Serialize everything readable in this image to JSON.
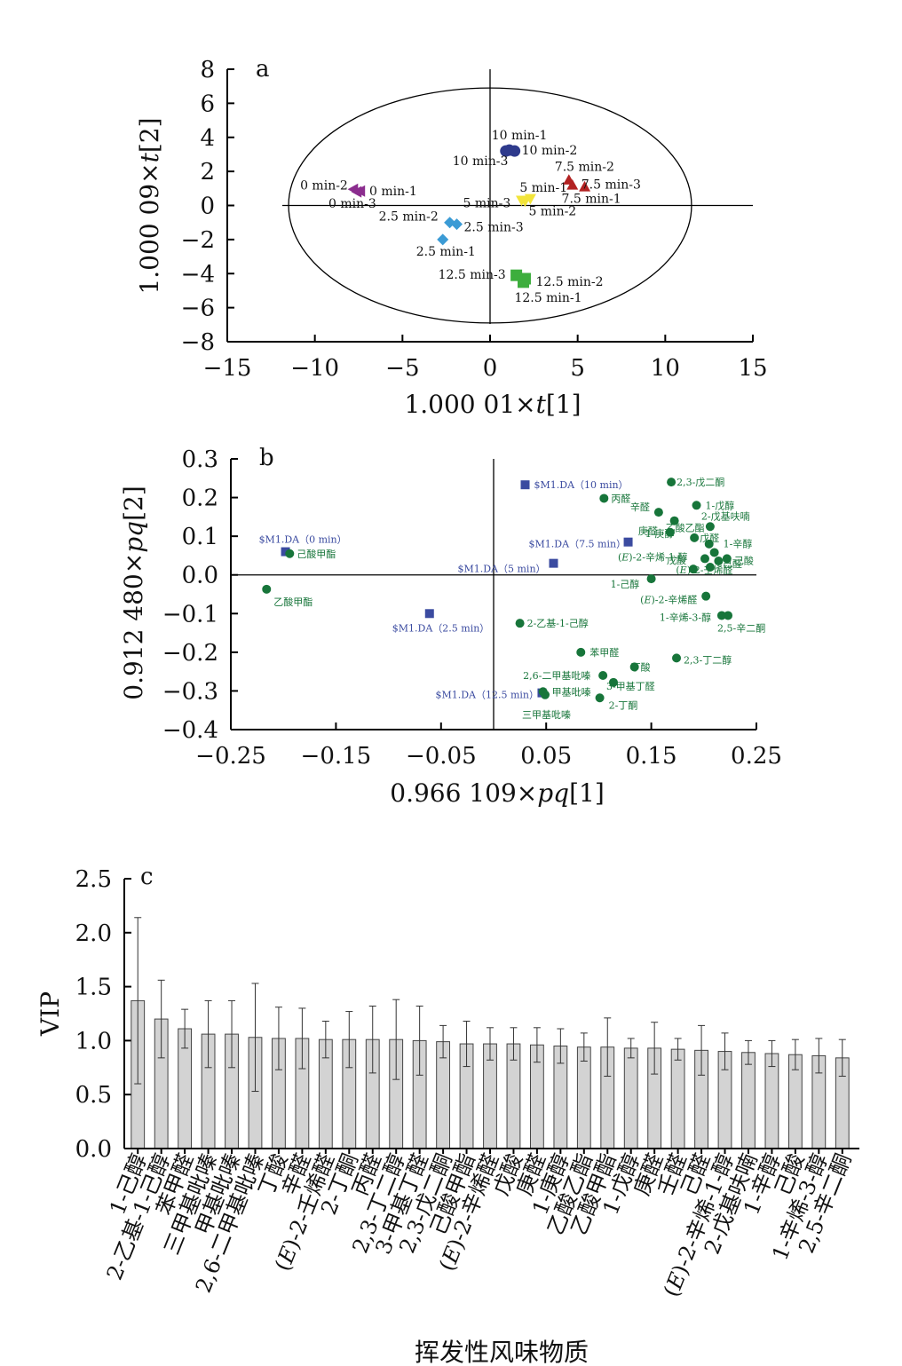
{
  "chart_data": [
    {
      "panel": "a",
      "type": "scatter",
      "xlabel_prefix": "1.000 01×",
      "xlabel_var": "t",
      "xlabel_suffix": "[1]",
      "ylabel_prefix": "1.000 09×",
      "ylabel_var": "t",
      "ylabel_suffix": "[2]",
      "xlim": [
        -15,
        15
      ],
      "ylim": [
        -8,
        8
      ],
      "x_ticks": [
        "−15",
        "−10",
        "−5",
        "0",
        "5",
        "10",
        "15"
      ],
      "y_ticks": [
        "8",
        "6",
        "4",
        "2",
        "0",
        "−2",
        "−4",
        "−6",
        "−8"
      ],
      "ellipse": {
        "cx": 0,
        "cy": 0,
        "rx": 11.5,
        "ry": 6.9
      },
      "groups": [
        {
          "name": "0 min",
          "color": "#8B2D8E",
          "marker": "triangle-left",
          "points": [
            {
              "label": "0 min-1",
              "x": -7.4,
              "y": 0.85
            },
            {
              "label": "0 min-2",
              "x": -7.8,
              "y": 0.95
            },
            {
              "label": "0 min-3",
              "x": -7.6,
              "y": 0.8
            }
          ]
        },
        {
          "name": "2.5 min",
          "color": "#3B9BD5",
          "marker": "diamond",
          "points": [
            {
              "label": "2.5 min-1",
              "x": -2.7,
              "y": -2.0
            },
            {
              "label": "2.5 min-2",
              "x": -2.3,
              "y": -1.0
            },
            {
              "label": "2.5 min-3",
              "x": -1.9,
              "y": -1.1
            }
          ]
        },
        {
          "name": "5 min",
          "color": "#F2E43A",
          "marker": "triangle-down",
          "points": [
            {
              "label": "5 min-1",
              "x": 2.3,
              "y": 0.4
            },
            {
              "label": "5 min-2",
              "x": 2.0,
              "y": 0.25
            },
            {
              "label": "5 min-3",
              "x": 1.8,
              "y": 0.3
            }
          ]
        },
        {
          "name": "7.5 min",
          "color": "#B22222",
          "marker": "triangle-up",
          "points": [
            {
              "label": "7.5 min-1",
              "x": 5.4,
              "y": 1.1
            },
            {
              "label": "7.5 min-2",
              "x": 4.5,
              "y": 1.5
            },
            {
              "label": "7.5 min-3",
              "x": 4.7,
              "y": 1.2
            }
          ]
        },
        {
          "name": "10 min",
          "color": "#2E3A8C",
          "marker": "circle",
          "points": [
            {
              "label": "10 min-1",
              "x": 1.1,
              "y": 3.25
            },
            {
              "label": "10 min-2",
              "x": 1.4,
              "y": 3.2
            },
            {
              "label": "10 min-3",
              "x": 0.9,
              "y": 3.2
            }
          ]
        },
        {
          "name": "12.5 min",
          "color": "#3DAE3D",
          "marker": "square",
          "points": [
            {
              "label": "12.5 min-1",
              "x": 1.9,
              "y": -4.5
            },
            {
              "label": "12.5 min-2",
              "x": 2.0,
              "y": -4.3
            },
            {
              "label": "12.5 min-3",
              "x": 1.5,
              "y": -4.1
            }
          ]
        }
      ]
    },
    {
      "panel": "b",
      "type": "scatter",
      "xlabel_prefix": "0.966 109×",
      "xlabel_var": "pq",
      "xlabel_suffix": "[1]",
      "ylabel_prefix": "0.912 480×",
      "ylabel_var": "pq",
      "ylabel_suffix": "[2]",
      "xlim": [
        -0.25,
        0.25
      ],
      "ylim": [
        -0.4,
        0.3
      ],
      "x_ticks": [
        "−0.25",
        "−0.15",
        "−0.05",
        "0.05",
        "0.15",
        "0.25"
      ],
      "y_ticks": [
        "0.3",
        "0.2",
        "0.1",
        "0.0",
        "−0.1",
        "−0.2",
        "−0.3",
        "−0.4"
      ],
      "samples_color": "#3B4BA0",
      "compounds_color": "#17753A",
      "samples": [
        {
          "label": "$M1.DA（0 min）",
          "x": -0.198,
          "y": 0.06
        },
        {
          "label": "$M1.DA（2.5 min）",
          "x": -0.061,
          "y": -0.1
        },
        {
          "label": "$M1.DA（5 min）",
          "x": 0.057,
          "y": 0.03
        },
        {
          "label": "$M1.DA（7.5 min）",
          "x": 0.128,
          "y": 0.085
        },
        {
          "label": "$M1.DA（10 min）",
          "x": 0.03,
          "y": 0.233
        },
        {
          "label": "$M1.DA（12.5 min）",
          "x": 0.046,
          "y": -0.305
        }
      ],
      "compounds": [
        {
          "label": "己酸甲酯",
          "x": -0.194,
          "y": 0.055
        },
        {
          "label": "乙酸甲酯",
          "x": -0.216,
          "y": -0.037
        },
        {
          "label": "2-乙基-1-己醇",
          "x": 0.025,
          "y": -0.125
        },
        {
          "label": "苯甲醛",
          "x": 0.083,
          "y": -0.2
        },
        {
          "label": "2,3-戊二酮",
          "x": 0.169,
          "y": 0.24
        },
        {
          "label": "丙醛",
          "x": 0.105,
          "y": 0.198
        },
        {
          "label": "1-戊醇",
          "x": 0.193,
          "y": 0.18
        },
        {
          "label": "辛醛",
          "x": 0.157,
          "y": 0.162
        },
        {
          "label": "乙酸乙酯",
          "x": 0.172,
          "y": 0.14
        },
        {
          "label": "2-戊基呋喃",
          "x": 0.206,
          "y": 0.125
        },
        {
          "label": "庚醛",
          "x": 0.168,
          "y": 0.11
        },
        {
          "label": "戊醛",
          "x": 0.191,
          "y": 0.096
        },
        {
          "label": "1-庚醇",
          "x": 0.205,
          "y": 0.08
        },
        {
          "label": "1-辛醇",
          "x": 0.21,
          "y": 0.058
        },
        {
          "label": "(E)-2-辛烯-1-醇",
          "x": 0.201,
          "y": 0.042
        },
        {
          "label": "己酸",
          "x": 0.222,
          "y": 0.042
        },
        {
          "label": "戊酸",
          "x": 0.19,
          "y": 0.015
        },
        {
          "label": "己醛",
          "x": 0.206,
          "y": 0.02
        },
        {
          "label": "1-己醇",
          "x": 0.15,
          "y": -0.01
        },
        {
          "label": "(E)-2-壬烯醛",
          "x": 0.214,
          "y": 0.036
        },
        {
          "label": "(E)-2-辛烯醛",
          "x": 0.202,
          "y": -0.055
        },
        {
          "label": "2,5-辛二酮",
          "x": 0.223,
          "y": -0.105
        },
        {
          "label": "1-辛烯-3-醇",
          "x": 0.217,
          "y": -0.105
        },
        {
          "label": "2,3-丁二醇",
          "x": 0.174,
          "y": -0.215
        },
        {
          "label": "丁酸",
          "x": 0.134,
          "y": -0.238
        },
        {
          "label": "2,6-二甲基吡嗪",
          "x": 0.104,
          "y": -0.26
        },
        {
          "label": "3-甲基丁醛",
          "x": 0.114,
          "y": -0.278
        },
        {
          "label": "甲基吡嗪",
          "x": 0.047,
          "y": -0.302
        },
        {
          "label": "2-丁酮",
          "x": 0.101,
          "y": -0.318
        },
        {
          "label": "三甲基吡嗪",
          "x": 0.049,
          "y": -0.31
        }
      ],
      "label_text_extra": [
        "(E)-2-辛烯-1-醇"
      ]
    },
    {
      "panel": "c",
      "type": "bar",
      "xlabel": "挥发性风味物质",
      "ylabel": "VIP",
      "ylim": [
        0,
        2.5
      ],
      "y_ticks": [
        "2.5",
        "2.0",
        "1.5",
        "1.0",
        "0.5",
        "0.0"
      ],
      "categories": [
        "1-己醇",
        "2-乙基-1-己醇",
        "苯甲醛",
        "三甲基吡嗪",
        "甲基吡嗪",
        "2,6-二甲基吡嗪",
        "丁酸",
        "辛醛",
        "(E)-2-壬烯醛",
        "2-丁酮",
        "丙醛",
        "2,3-丁二醇",
        "3-甲基丁醛",
        "2,3-戊二酮",
        "己酸甲酯",
        "(E)-2-辛烯醛",
        "戊酸",
        "庚醛",
        "1-庚醇",
        "乙酸乙酯",
        "乙酸甲酯",
        "1-戊醇",
        "庚醛",
        "壬醛",
        "己醛",
        "(E)-2-辛烯-1-醇",
        "2-戊基呋喃",
        "1-辛醇",
        "己酸",
        "1-辛烯-3-醇",
        "2,5-辛二酮"
      ],
      "values": [
        1.37,
        1.2,
        1.11,
        1.06,
        1.06,
        1.03,
        1.02,
        1.02,
        1.01,
        1.01,
        1.01,
        1.01,
        1.0,
        0.99,
        0.97,
        0.97,
        0.97,
        0.96,
        0.95,
        0.94,
        0.94,
        0.93,
        0.93,
        0.92,
        0.91,
        0.9,
        0.89,
        0.88,
        0.87,
        0.86,
        0.84
      ],
      "errors": [
        0.77,
        0.36,
        0.18,
        0.31,
        0.31,
        0.5,
        0.29,
        0.28,
        0.17,
        0.26,
        0.31,
        0.37,
        0.32,
        0.15,
        0.21,
        0.15,
        0.15,
        0.16,
        0.16,
        0.13,
        0.27,
        0.09,
        0.24,
        0.1,
        0.23,
        0.17,
        0.11,
        0.12,
        0.14,
        0.16,
        0.17
      ]
    }
  ]
}
